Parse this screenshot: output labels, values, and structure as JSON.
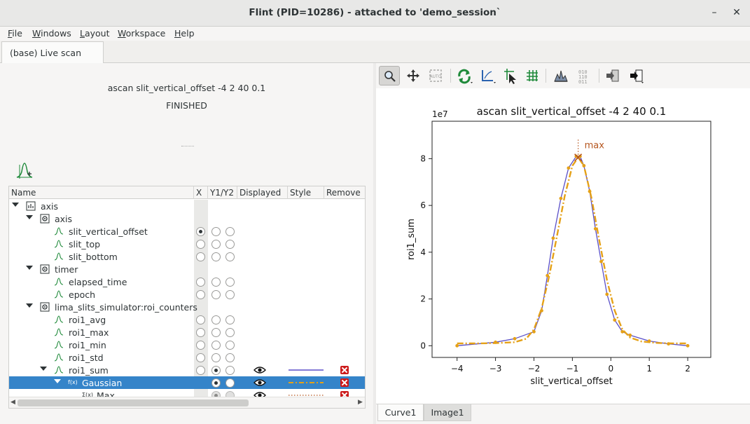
{
  "window": {
    "title": "Flint (PID=10286) - attached to 'demo_session`",
    "minimize_glyph": "–",
    "close_glyph": "✕"
  },
  "menu": [
    {
      "label": "File",
      "u": "F",
      "rest": "ile"
    },
    {
      "label": "Windows",
      "u": "W",
      "rest": "indows"
    },
    {
      "label": "Layout",
      "u": "L",
      "rest": "ayout"
    },
    {
      "label": "Workspace",
      "u": "W",
      "rest": "orkspace"
    },
    {
      "label": "Help",
      "u": "H",
      "rest": "elp"
    }
  ],
  "tabs": {
    "live_scan": "(base) Live scan"
  },
  "scan": {
    "title": "ascan slit_vertical_offset -4 2 40 0.1",
    "status": "FINISHED"
  },
  "tree": {
    "columns": {
      "name": "Name",
      "x": "X",
      "y1y2": "Y1/Y2",
      "displayed": "Displayed",
      "style": "Style",
      "remove": "Remove"
    },
    "rows": [
      {
        "label": "axis",
        "icon": "device-icon"
      },
      {
        "label": "axis",
        "icon": "controller-icon"
      },
      {
        "label": "slit_vertical_offset",
        "icon": "channel-icon"
      },
      {
        "label": "slit_top",
        "icon": "channel-icon"
      },
      {
        "label": "slit_bottom",
        "icon": "channel-icon"
      },
      {
        "label": "timer",
        "icon": "controller-icon"
      },
      {
        "label": "elapsed_time",
        "icon": "channel-icon"
      },
      {
        "label": "epoch",
        "icon": "channel-icon"
      },
      {
        "label": "lima_slits_simulator:roi_counters",
        "icon": "controller-icon"
      },
      {
        "label": "roi1_avg",
        "icon": "channel-icon"
      },
      {
        "label": "roi1_max",
        "icon": "channel-icon"
      },
      {
        "label": "roi1_min",
        "icon": "channel-icon"
      },
      {
        "label": "roi1_std",
        "icon": "channel-icon"
      },
      {
        "label": "roi1_sum",
        "icon": "channel-icon"
      },
      {
        "label": "Gaussian",
        "icon": "function-icon",
        "icon_text": "f(x)"
      },
      {
        "label": "Max",
        "icon": "sum-icon",
        "icon_text": "Σ(x)"
      }
    ]
  },
  "colors": {
    "selection": "#3584c9",
    "curve_raw": "#5a4fc8",
    "curve_fit": "#e5a117",
    "marker_max": "#b5561f",
    "remove": "#cc1a1a"
  },
  "plot": {
    "title": "ascan slit_vertical_offset -4 2 40 0.1",
    "xlabel": "slit_vertical_offset",
    "ylabel": "roi1_sum",
    "exponent": "1e7",
    "marker_label": "max",
    "xticks": [
      "−4",
      "−3",
      "−2",
      "−1",
      "0",
      "1",
      "2"
    ],
    "yticks": [
      "0",
      "2",
      "4",
      "6",
      "8"
    ]
  },
  "chart_data": {
    "type": "line",
    "title": "ascan slit_vertical_offset -4 2 40 0.1",
    "xlabel": "slit_vertical_offset",
    "ylabel": "roi1_sum",
    "y_scale_label": "1e7",
    "xlim": [
      -4.65,
      2.6
    ],
    "ylim": [
      -0.5,
      9.6
    ],
    "series": [
      {
        "name": "roi1_sum",
        "style": "solid",
        "x": [
          -4.0,
          -3.0,
          -2.5,
          -2.0,
          -1.8,
          -1.65,
          -1.5,
          -1.3,
          -1.1,
          -0.9,
          -0.8,
          -0.7,
          -0.55,
          -0.4,
          -0.25,
          -0.1,
          0.1,
          0.3,
          0.5,
          1.0,
          1.5,
          2.0
        ],
        "values": [
          0.0,
          0.15,
          0.3,
          0.6,
          1.5,
          3.0,
          4.6,
          6.3,
          7.6,
          8.1,
          8.1,
          7.7,
          6.6,
          5.0,
          3.6,
          2.2,
          1.1,
          0.6,
          0.45,
          0.2,
          0.08,
          0.0
        ]
      },
      {
        "name": "Gaussian",
        "style": "dash-dot",
        "x": [
          -4.0,
          -3.5,
          -3.0,
          -2.5,
          -2.2,
          -2.0,
          -1.8,
          -1.6,
          -1.4,
          -1.2,
          -1.0,
          -0.85,
          -0.7,
          -0.5,
          -0.3,
          -0.1,
          0.1,
          0.3,
          0.5,
          0.8,
          1.2,
          1.6,
          2.0
        ],
        "values": [
          0.1,
          0.1,
          0.11,
          0.15,
          0.3,
          0.7,
          1.6,
          3.0,
          4.7,
          6.4,
          7.7,
          8.05,
          7.7,
          6.3,
          4.5,
          2.8,
          1.5,
          0.7,
          0.35,
          0.18,
          0.12,
          0.1,
          0.1
        ]
      },
      {
        "name": "Max",
        "style": "marker",
        "x": [
          -0.85
        ],
        "values": [
          8.05
        ]
      }
    ],
    "grid": false
  }
}
